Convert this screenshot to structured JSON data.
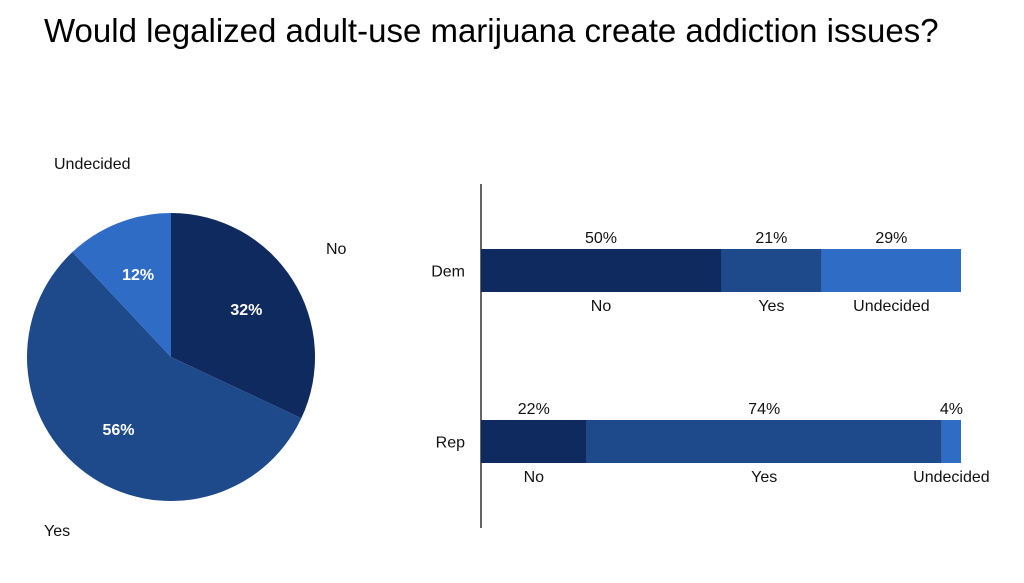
{
  "title": "Would legalized adult-use marijuana create addiction issues?",
  "colors": {
    "no": "#0f2a5e",
    "yes": "#1e4a8c",
    "undecided": "#2f6cc6",
    "axis": "#000000"
  },
  "chart_data": [
    {
      "type": "pie",
      "title": "",
      "slices": [
        {
          "label": "No",
          "value": 32,
          "value_label": "32%",
          "color_key": "no"
        },
        {
          "label": "Yes",
          "value": 56,
          "value_label": "56%",
          "color_key": "yes"
        },
        {
          "label": "Undecided",
          "value": 12,
          "value_label": "12%",
          "color_key": "undecided"
        }
      ]
    },
    {
      "type": "bar",
      "orientation": "horizontal",
      "stacked": true,
      "categories": [
        "Dem",
        "Rep"
      ],
      "series": [
        {
          "name": "No",
          "values": [
            50,
            22
          ],
          "value_labels": [
            "50%",
            "22%"
          ],
          "color_key": "no"
        },
        {
          "name": "Yes",
          "values": [
            21,
            74
          ],
          "value_labels": [
            "21%",
            "74%"
          ],
          "color_key": "yes"
        },
        {
          "name": "Undecided",
          "values": [
            29,
            4
          ],
          "value_labels": [
            "29%",
            "4%"
          ],
          "color_key": "undecided"
        }
      ],
      "xlim": [
        0,
        100
      ]
    }
  ]
}
